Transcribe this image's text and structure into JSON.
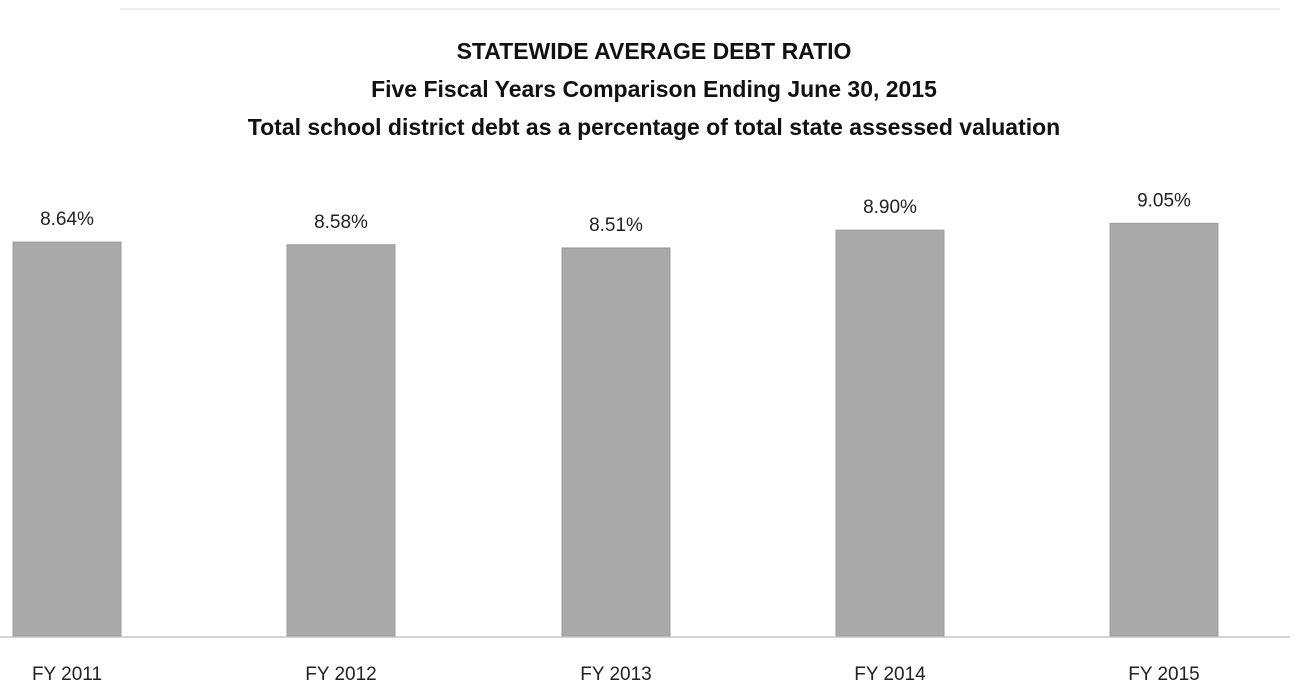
{
  "chart_data": {
    "type": "bar",
    "title": "STATEWIDE AVERAGE DEBT RATIO",
    "subtitle": "Five Fiscal Years Comparison Ending June 30, 2015",
    "subtitle2": "Total school district debt as a percentage of total state assessed valuation",
    "categories": [
      "FY 2011",
      "FY 2012",
      "FY 2013",
      "FY 2014",
      "FY 2015"
    ],
    "values": [
      8.64,
      8.58,
      8.51,
      8.9,
      9.05
    ],
    "value_labels": [
      "8.64%",
      "8.58%",
      "8.51%",
      "8.90%",
      "9.05%"
    ],
    "unit": "%",
    "xlabel": "",
    "ylabel": "",
    "ylim": [
      0,
      10
    ],
    "grid": false,
    "legend": "none",
    "colors": {
      "bar": "#a9a9a9",
      "text": "#222222"
    }
  }
}
